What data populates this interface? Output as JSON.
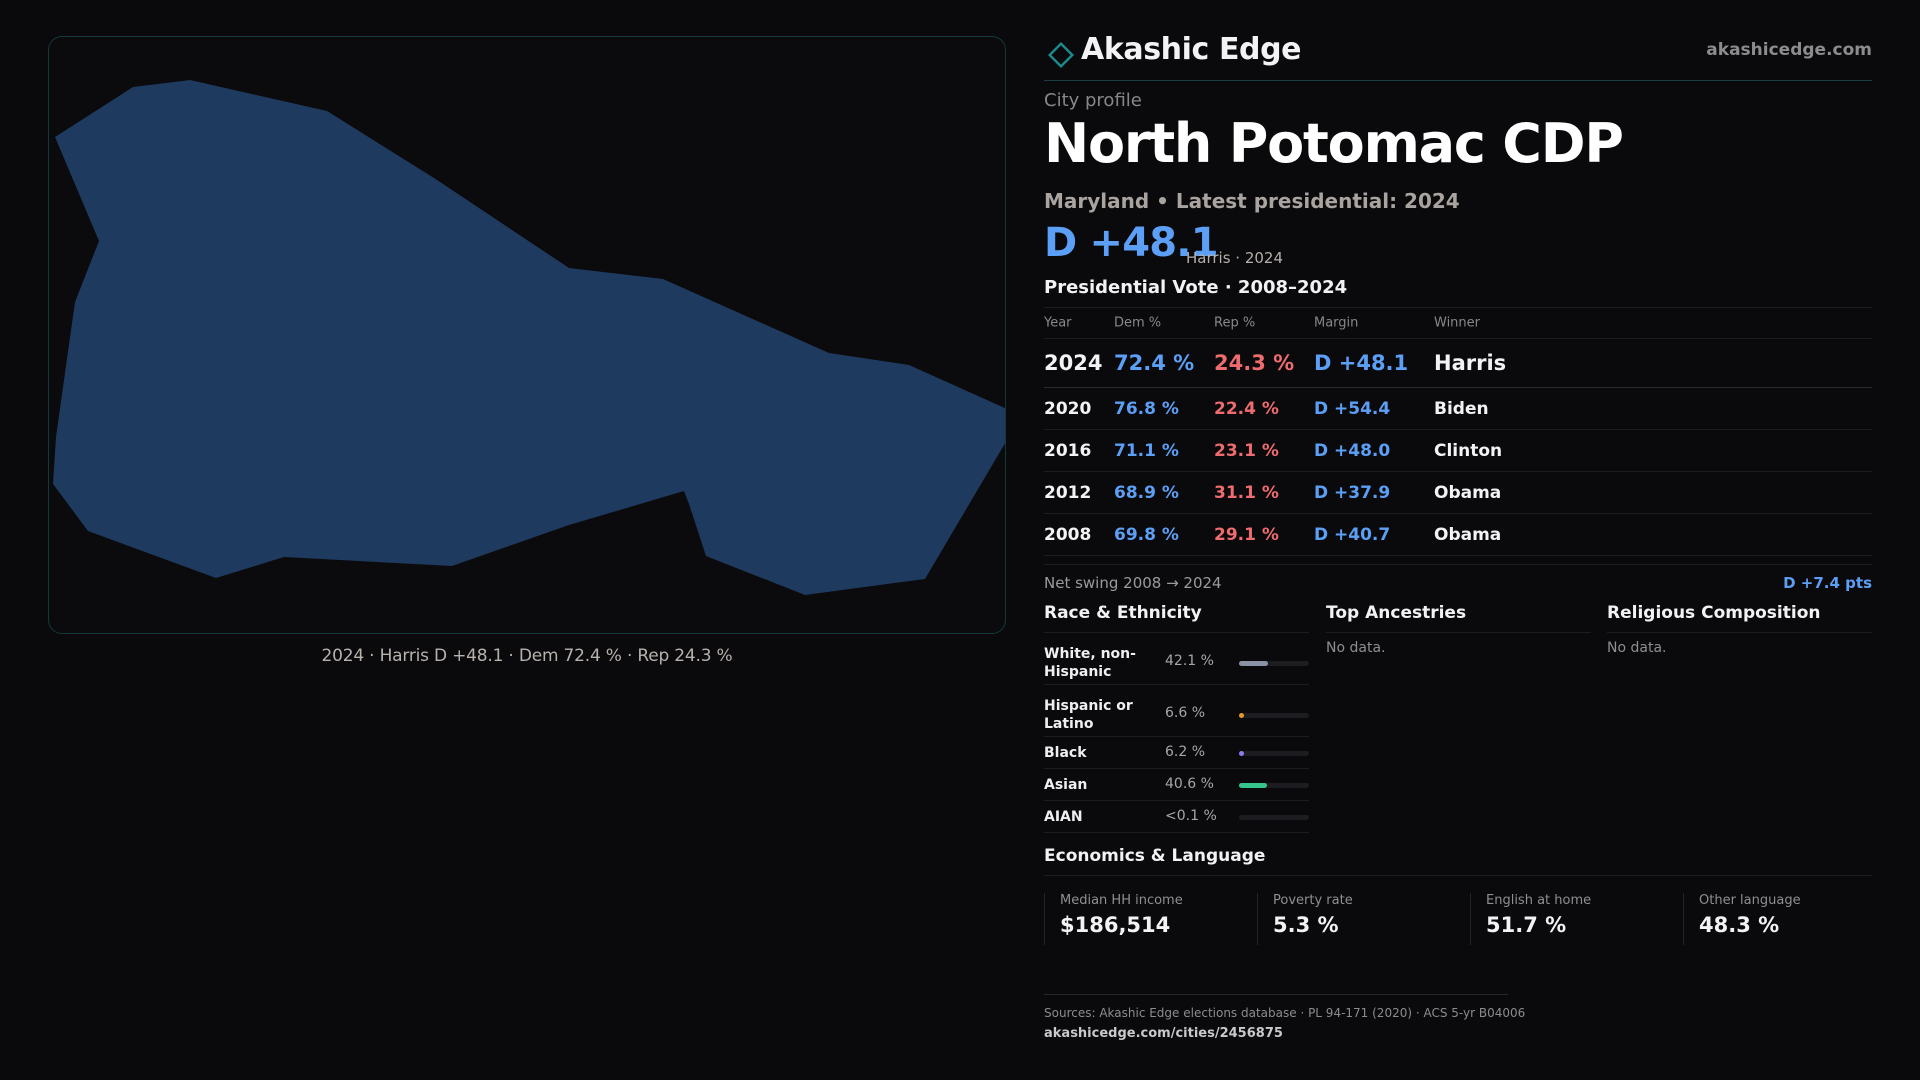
{
  "brand": {
    "name": "Akashic Edge",
    "url": "akashicedge.com",
    "accent": "#1b8b8e"
  },
  "map": {
    "fill": "#1f3a5f",
    "caption": "2024 · Harris D +48.1 · Dem 72.4 % · Rep 24.3 %"
  },
  "profile": {
    "kicker": "City profile",
    "title": "North Potomac CDP",
    "subtitle": "Maryland • Latest presidential: 2024",
    "margin": "D +48.1",
    "margin_note": "Harris · 2024"
  },
  "vote": {
    "heading": "Presidential Vote · 2008–2024",
    "columns": [
      "Year",
      "Dem %",
      "Rep %",
      "Margin",
      "Winner"
    ],
    "rows": [
      {
        "year": "2024",
        "dem": "72.4 %",
        "rep": "24.3 %",
        "margin": "D +48.1",
        "winner": "Harris"
      },
      {
        "year": "2020",
        "dem": "76.8 %",
        "rep": "22.4 %",
        "margin": "D +54.4",
        "winner": "Biden"
      },
      {
        "year": "2016",
        "dem": "71.1 %",
        "rep": "23.1 %",
        "margin": "D +48.0",
        "winner": "Clinton"
      },
      {
        "year": "2012",
        "dem": "68.9 %",
        "rep": "31.1 %",
        "margin": "D +37.9",
        "winner": "Obama"
      },
      {
        "year": "2008",
        "dem": "69.8 %",
        "rep": "29.1 %",
        "margin": "D +40.7",
        "winner": "Obama"
      }
    ],
    "swing_label": "Net swing 2008 → 2024",
    "swing_value": "D +7.4 pts",
    "colors": {
      "dem": "#5ba0f6",
      "rep": "#ee6b6e"
    }
  },
  "race": {
    "title": "Race & Ethnicity",
    "rows": [
      {
        "label": "White, non-Hispanic",
        "pct": "42.1 %",
        "share": 0.421,
        "color": "#8a93a6"
      },
      {
        "label": "Hispanic or Latino",
        "pct": "6.6 %",
        "share": 0.066,
        "color": "#e39a2f"
      },
      {
        "label": "Black",
        "pct": "6.2 %",
        "share": 0.062,
        "color": "#8f7cf0"
      },
      {
        "label": "Asian",
        "pct": "40.6 %",
        "share": 0.406,
        "color": "#36c58a"
      },
      {
        "label": "AIAN",
        "pct": "<0.1 %",
        "share": 0.0,
        "color": "#7a7a80"
      }
    ]
  },
  "ancestries": {
    "title": "Top Ancestries",
    "empty": "No data."
  },
  "religion": {
    "title": "Religious Composition",
    "empty": "No data."
  },
  "economics": {
    "title": "Economics & Language",
    "stats": [
      {
        "label": "Median HH income",
        "value": "$186,514"
      },
      {
        "label": "Poverty rate",
        "value": "5.3 %"
      },
      {
        "label": "English at home",
        "value": "51.7 %"
      },
      {
        "label": "Other language",
        "value": "48.3 %"
      }
    ]
  },
  "footer": {
    "sources": "Sources: Akashic Edge elections database · PL 94-171 (2020) · ACS 5-yr B04006",
    "url": "akashicedge.com/cities/2456875"
  }
}
